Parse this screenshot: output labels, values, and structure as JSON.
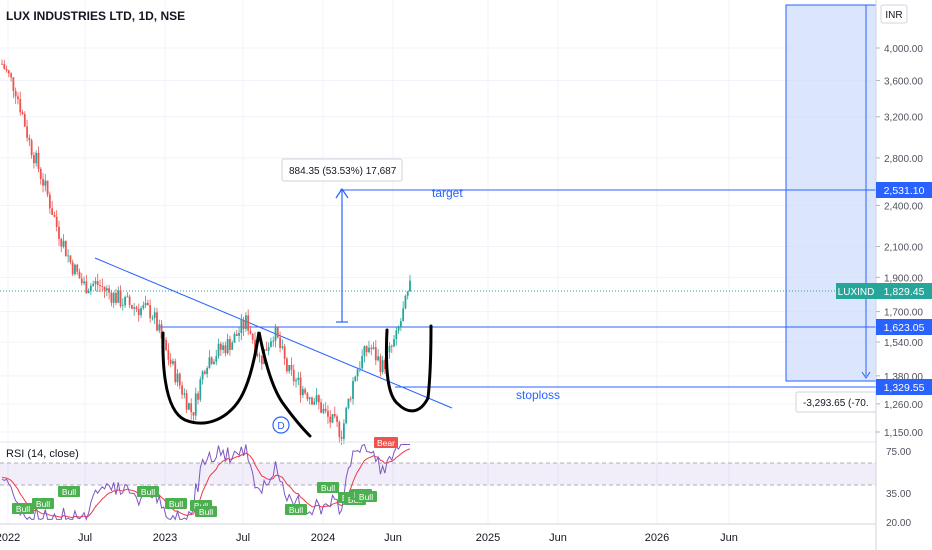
{
  "header": {
    "symbol_title": "LUX INDUSTRIES LTD, 1D, NSE"
  },
  "currency": "INR",
  "price_axis": {
    "ticks": [
      "4,000.00",
      "3,600.00",
      "3,200.00",
      "2,800.00",
      "2,400.00",
      "2,100.00",
      "1,900.00",
      "1,700.00",
      "1,540.00",
      "1,380.00",
      "1,260.00",
      "1,150.00"
    ]
  },
  "price_labels": {
    "target": "2,531.10",
    "last": "1,829.45",
    "neckline": "1,623.05",
    "stoploss": "1,329.55",
    "ticker": "LUXIND"
  },
  "annotations": {
    "measure": "884.35 (53.53%) 17,687",
    "target_text": "target",
    "stoploss_text": "stoploss",
    "range_loss": "-3,293.65 (-70.",
    "marker_d": "D"
  },
  "rsi": {
    "title": "RSI (14, close)",
    "ticks": [
      "75.00",
      "35.00",
      "20.00"
    ],
    "bull_badge": "Bull",
    "bear_badge": "Bear"
  },
  "time_axis": {
    "labels": [
      "2022",
      "Jul",
      "2023",
      "Jul",
      "2024",
      "Jun",
      "2025",
      "Jun",
      "2026",
      "Jun"
    ]
  },
  "colors": {
    "up": "#26a69a",
    "down": "#ef5350",
    "accent": "#2962ff",
    "rsi_line": "#7e57c2",
    "rsi_ma": "#f23645",
    "bull": "#4caf50",
    "ticker_bg": "#26a69a"
  },
  "chart_data": {
    "type": "line",
    "title": "LUX INDUSTRIES LTD, 1D, NSE",
    "xlabel": "",
    "ylabel": "",
    "y_scale": "log",
    "ylim": [
      1100,
      4600
    ],
    "x": [
      "2022-01",
      "2022-02",
      "2022-03",
      "2022-04",
      "2022-05",
      "2022-06",
      "2022-07",
      "2022-08",
      "2022-09",
      "2022-10",
      "2022-11",
      "2022-12",
      "2023-01",
      "2023-02",
      "2023-03",
      "2023-04",
      "2023-05",
      "2023-06",
      "2023-07",
      "2023-08",
      "2023-09",
      "2023-10",
      "2023-11",
      "2023-12",
      "2024-01",
      "2024-02",
      "2024-03",
      "2024-04",
      "2024-05",
      "2024-06",
      "2024-07"
    ],
    "series": [
      {
        "values": [
          3800,
          3500,
          2950,
          2600,
          2250,
          2000,
          1850,
          1860,
          1800,
          1750,
          1720,
          1700,
          1500,
          1350,
          1220,
          1450,
          1500,
          1550,
          1650,
          1450,
          1600,
          1400,
          1330,
          1280,
          1200,
          1150,
          1400,
          1520,
          1420,
          1560,
          1830
        ]
      }
    ],
    "levels": {
      "target": 2531.1,
      "neckline": 1623.05,
      "stoploss": 1329.55,
      "last": 1829.45
    }
  }
}
